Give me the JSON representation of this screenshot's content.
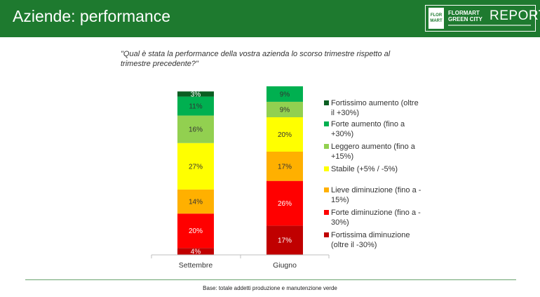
{
  "header": {
    "title": "Aziende: performance",
    "brand_color": "#1e7a2f",
    "logo": {
      "mark": "FLOR MART",
      "line1": "FLORMART",
      "line2": "GREEN CITY",
      "big": "REPORT"
    }
  },
  "question": "\"Qual è stata la performance della vostra azienda lo scorso trimestre rispetto al trimestre precedente?\"",
  "footnote": "Base: totale addetti produzione e manutenzione verde",
  "chart_data": {
    "type": "bar",
    "stacked": true,
    "categories": [
      "Settembre",
      "Giugno"
    ],
    "ylim": [
      0,
      100
    ],
    "series": [
      {
        "name": "Fortissima diminuzione (oltre il -30%)",
        "color": "#c00000",
        "values": [
          4,
          17
        ],
        "labels": [
          "4%",
          "17%"
        ]
      },
      {
        "name": "Forte diminuzione (fino a -30%)",
        "color": "#ff0000",
        "values": [
          20,
          26
        ],
        "labels": [
          "20%",
          "26%"
        ]
      },
      {
        "name": "Lieve diminuzione (fino a -15%)",
        "color": "#ffb000",
        "values": [
          14,
          17
        ],
        "labels": [
          "14%",
          "17%"
        ]
      },
      {
        "name": "Stabile (+5% / -5%)",
        "color": "#ffff00",
        "values": [
          27,
          20
        ],
        "labels": [
          "27%",
          "20%"
        ]
      },
      {
        "name": "Leggero aumento (fino a +15%)",
        "color": "#92d050",
        "values": [
          16,
          9
        ],
        "labels": [
          "16%",
          "9%"
        ]
      },
      {
        "name": "Forte aumento (fino a +30%)",
        "color": "#00b050",
        "values": [
          11,
          9
        ],
        "labels": [
          "11%",
          "9%"
        ]
      },
      {
        "name": "Fortissimo aumento (oltre il +30%)",
        "color": "#0b5e22",
        "values": [
          3,
          0
        ],
        "labels": [
          "3%",
          ""
        ]
      }
    ],
    "legend": {
      "placement": "right",
      "entries": [
        {
          "lines": [
            "Fortissimo aumento (oltre",
            "il +30%)"
          ],
          "color": "#0b5e22"
        },
        {
          "lines": [
            "Forte aumento (fino a",
            "+30%)"
          ],
          "color": "#00b050"
        },
        {
          "lines": [
            "Leggero aumento (fino a",
            "+15%)"
          ],
          "color": "#92d050"
        },
        {
          "lines": [
            "Stabile (+5% / -5%)"
          ],
          "color": "#ffff00"
        },
        {
          "lines": [
            "Lieve diminuzione (fino a -",
            "15%)"
          ],
          "color": "#ffb000"
        },
        {
          "lines": [
            "Forte diminuzione (fino a -",
            "30%)"
          ],
          "color": "#ff0000"
        },
        {
          "lines": [
            "Fortissima diminuzione",
            "(oltre il -30%)"
          ],
          "color": "#c00000"
        }
      ]
    }
  }
}
